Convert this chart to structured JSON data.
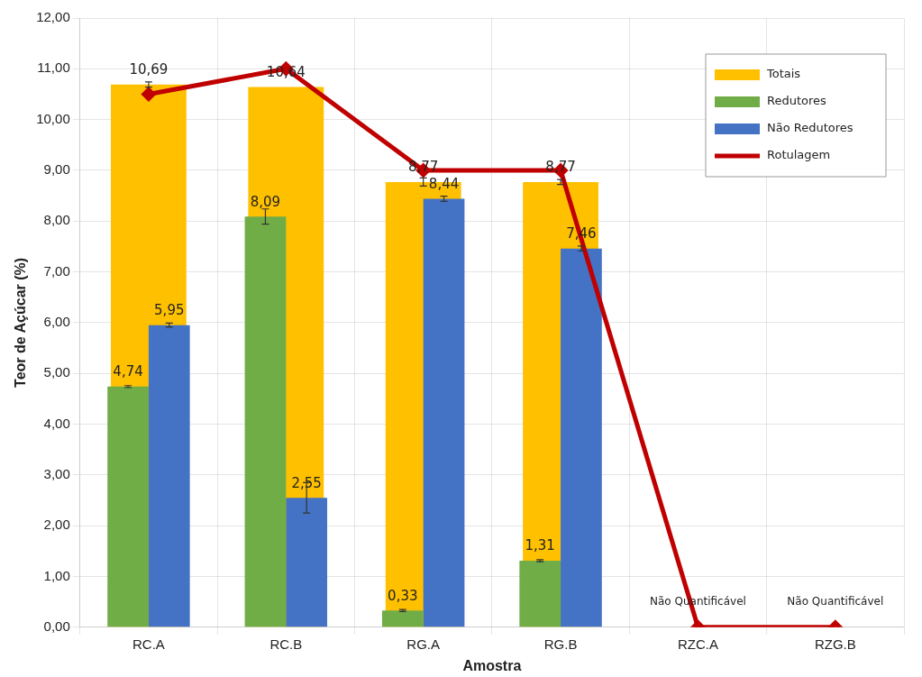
{
  "chart_data": {
    "type": "bar",
    "xlabel": "Amostra",
    "ylabel": "Teor de Açúcar (%)",
    "categories": [
      "RC.A",
      "RC.B",
      "RG.A",
      "RG.B",
      "RZC.A",
      "RZG.B"
    ],
    "series": [
      {
        "name": "Totais",
        "color": "#ffc000",
        "values": [
          10.69,
          10.64,
          8.77,
          8.77,
          null,
          null
        ],
        "errors": [
          0.05,
          null,
          0.08,
          0.05,
          null,
          null
        ],
        "value_labels": [
          "10,69",
          "10,64",
          "8,77",
          "8,77",
          null,
          null
        ]
      },
      {
        "name": "Redutores",
        "color": "#70ad47",
        "values": [
          4.74,
          8.09,
          0.33,
          1.31,
          null,
          null
        ],
        "errors": [
          0.02,
          0.15,
          0.02,
          0.02,
          null,
          null
        ],
        "value_labels": [
          "4,74",
          "8,09",
          "0,33",
          "1,31",
          null,
          null
        ]
      },
      {
        "name": "Não Redutores",
        "color": "#4472c4",
        "values": [
          5.95,
          2.55,
          8.44,
          7.46,
          null,
          null
        ],
        "errors": [
          0.04,
          0.3,
          0.05,
          0.05,
          null,
          null
        ],
        "value_labels": [
          "5,95",
          "2,55",
          "8,44",
          "7,46",
          null,
          null
        ]
      },
      {
        "name": "Rotulagem",
        "type": "line",
        "color": "#c00000",
        "values": [
          10.5,
          11,
          9,
          9,
          0,
          0
        ]
      }
    ],
    "ylim": [
      0,
      12
    ],
    "yticks": [
      {
        "value": 0,
        "label": "0,00"
      },
      {
        "value": 1,
        "label": "1,00"
      },
      {
        "value": 2,
        "label": "2,00"
      },
      {
        "value": 3,
        "label": "3,00"
      },
      {
        "value": 4,
        "label": "4,00"
      },
      {
        "value": 5,
        "label": "5,00"
      },
      {
        "value": 6,
        "label": "6,00"
      },
      {
        "value": 7,
        "label": "7,00"
      },
      {
        "value": 8,
        "label": "8,00"
      },
      {
        "value": 9,
        "label": "9,00"
      },
      {
        "value": 10,
        "label": "10,00"
      },
      {
        "value": 11,
        "label": "11,00"
      },
      {
        "value": 12,
        "label": "12,00"
      }
    ],
    "annotations": [
      {
        "text": "Não Quantificável",
        "x": "RZC.A",
        "y": 0
      },
      {
        "text": "Não Quantificável",
        "x": "RZG.B",
        "y": 0
      }
    ],
    "grid": true,
    "legend": "top right",
    "marker": "diamond",
    "line_style": "solid"
  }
}
